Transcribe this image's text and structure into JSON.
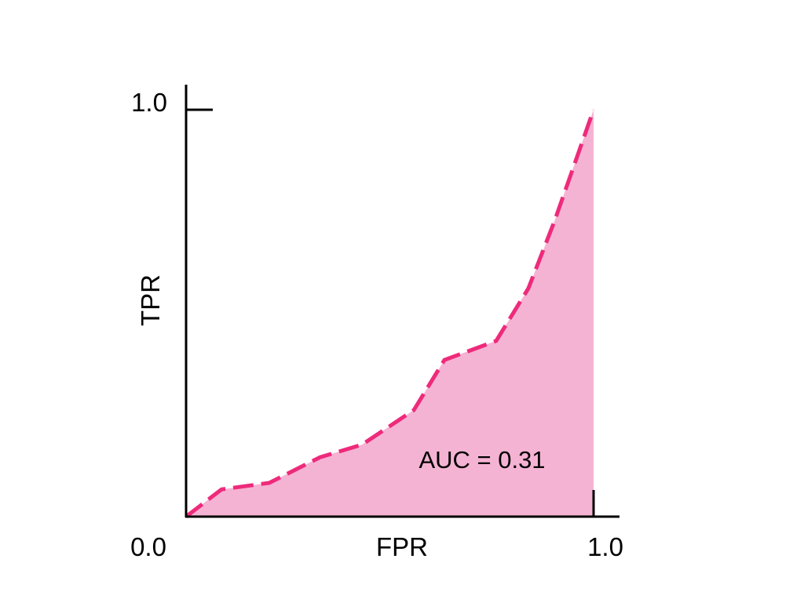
{
  "chart_data": {
    "type": "area",
    "xlabel": "FPR",
    "ylabel": "TPR",
    "xlim": [
      0.0,
      1.0
    ],
    "ylim": [
      0.0,
      1.0
    ],
    "x_tick_labels": [
      "0.0",
      "1.0"
    ],
    "y_tick_labels": [
      "1.0"
    ],
    "grid": false,
    "annotation": "AUC = 0.31",
    "line_style": "dashed",
    "colors": {
      "line": "#EE2A7B",
      "fill": "#F5B3D3",
      "axis": "#000000"
    },
    "x": [
      0.0,
      0.087,
      0.204,
      0.329,
      0.432,
      0.559,
      0.634,
      0.761,
      0.84,
      0.904,
      1.0
    ],
    "y": [
      0.0,
      0.067,
      0.083,
      0.146,
      0.177,
      0.262,
      0.385,
      0.432,
      0.561,
      0.726,
      1.0
    ]
  }
}
